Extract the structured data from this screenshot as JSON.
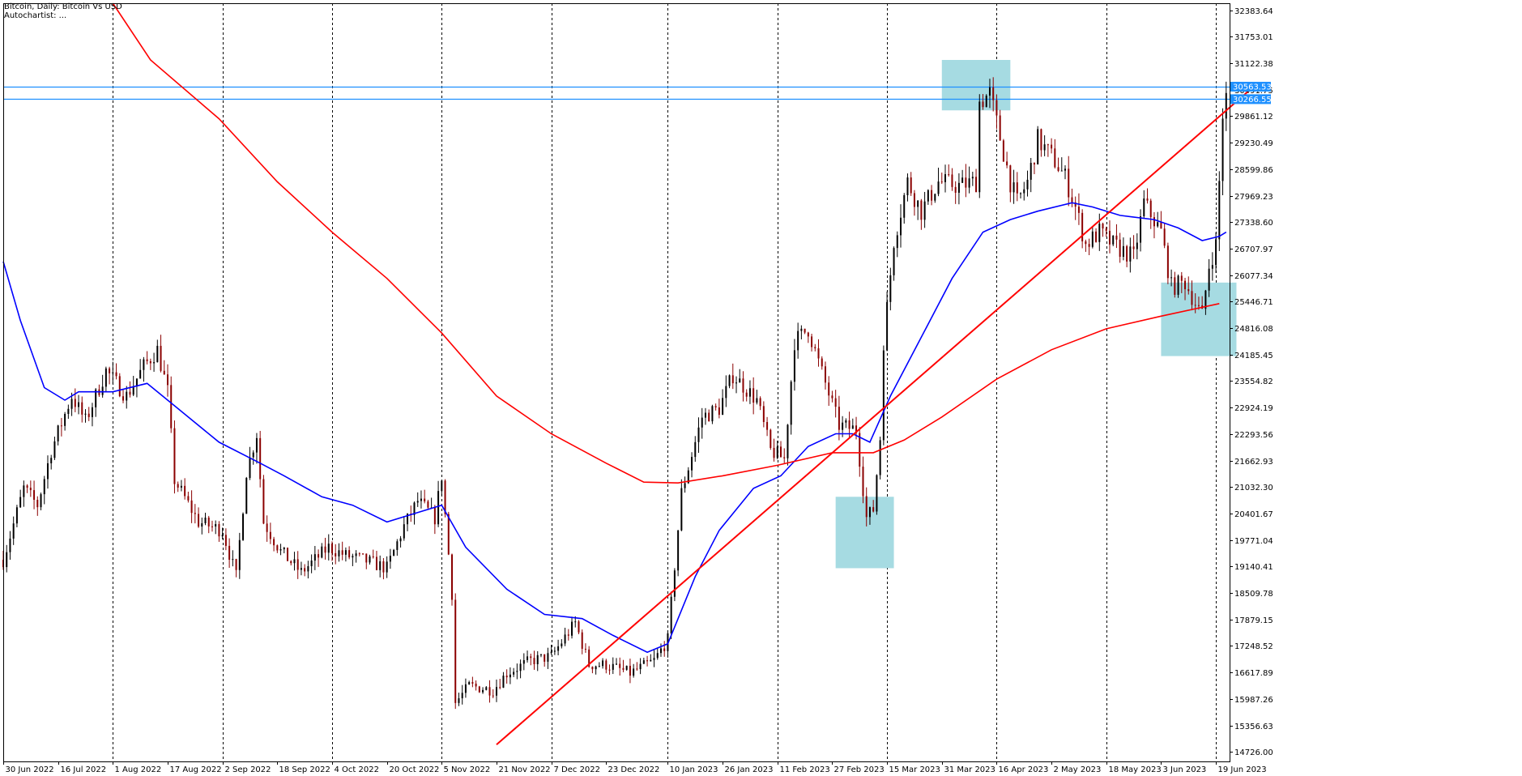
{
  "header": {
    "title": "Bitcoin, Daily:  Bitcoin Vs USD",
    "subtitle": "Autochartist:  ..."
  },
  "colors": {
    "background": "#ffffff",
    "bull": "#000000",
    "bear": "#8b0000",
    "ma_fast": "#0000ff",
    "ma_slow": "#ff0000",
    "trendline": "#ff0000",
    "hline": "#1e90ff",
    "zone": "#a6dbe2"
  },
  "price_labels": [
    {
      "value": 30563.53,
      "text": "30563.53"
    },
    {
      "value": 30266.55,
      "text": "30266.55"
    }
  ],
  "chart_data": {
    "type": "candlestick",
    "x_start": "2022-06-30",
    "x_end": "2023-06-23",
    "ylim": [
      14500,
      32550
    ],
    "y_ticks": [
      "32383.64",
      "31753.01",
      "31122.38",
      "30491.75",
      "29861.12",
      "29230.49",
      "28599.86",
      "27969.23",
      "27338.60",
      "26707.97",
      "26077.34",
      "25446.71",
      "24816.08",
      "24185.45",
      "23554.82",
      "22924.19",
      "22293.56",
      "21662.93",
      "21032.30",
      "20401.67",
      "19771.04",
      "19140.41",
      "18509.78",
      "17879.15",
      "17248.52",
      "16617.89",
      "15987.26",
      "15356.63",
      "14726.00"
    ],
    "x_ticks": [
      {
        "date": "2022-06-30",
        "label": "30 Jun 2022"
      },
      {
        "date": "2022-07-16",
        "label": "16 Jul 2022"
      },
      {
        "date": "2022-08-01",
        "label": "1 Aug 2022"
      },
      {
        "date": "2022-08-17",
        "label": "17 Aug 2022"
      },
      {
        "date": "2022-09-02",
        "label": "2 Sep 2022"
      },
      {
        "date": "2022-09-18",
        "label": "18 Sep 2022"
      },
      {
        "date": "2022-10-04",
        "label": "4 Oct 2022"
      },
      {
        "date": "2022-10-20",
        "label": "20 Oct 2022"
      },
      {
        "date": "2022-11-05",
        "label": "5 Nov 2022"
      },
      {
        "date": "2022-11-21",
        "label": "21 Nov 2022"
      },
      {
        "date": "2022-12-07",
        "label": "7 Dec 2022"
      },
      {
        "date": "2022-12-23",
        "label": "23 Dec 2022"
      },
      {
        "date": "2023-01-10",
        "label": "10 Jan 2023"
      },
      {
        "date": "2023-01-26",
        "label": "26 Jan 2023"
      },
      {
        "date": "2023-02-11",
        "label": "11 Feb 2023"
      },
      {
        "date": "2023-02-27",
        "label": "27 Feb 2023"
      },
      {
        "date": "2023-03-15",
        "label": "15 Mar 2023"
      },
      {
        "date": "2023-03-31",
        "label": "31 Mar 2023"
      },
      {
        "date": "2023-04-16",
        "label": "16 Apr 2023"
      },
      {
        "date": "2023-05-02",
        "label": "2 May 2023"
      },
      {
        "date": "2023-05-18",
        "label": "18 May 2023"
      },
      {
        "date": "2023-06-03",
        "label": "3 Jun 2023"
      },
      {
        "date": "2023-06-19",
        "label": "19 Jun 2023"
      }
    ],
    "vgrid_dates": [
      "2022-08-01",
      "2022-09-02",
      "2022-10-04",
      "2022-11-05",
      "2022-12-07",
      "2023-01-10",
      "2023-02-11",
      "2023-03-15",
      "2023-04-16",
      "2023-05-18",
      "2023-06-19"
    ],
    "close_path": [
      [
        "2022-06-30",
        19300
      ],
      [
        "2022-07-06",
        21000
      ],
      [
        "2022-07-10",
        20600
      ],
      [
        "2022-07-14",
        21900
      ],
      [
        "2022-07-20",
        23200
      ],
      [
        "2022-07-24",
        22600
      ],
      [
        "2022-07-30",
        23800
      ],
      [
        "2022-08-05",
        23200
      ],
      [
        "2022-08-10",
        23900
      ],
      [
        "2022-08-14",
        24300
      ],
      [
        "2022-08-17",
        23300
      ],
      [
        "2022-08-19",
        21200
      ],
      [
        "2022-08-26",
        20200
      ],
      [
        "2022-09-02",
        20000
      ],
      [
        "2022-09-06",
        18900
      ],
      [
        "2022-09-09",
        21400
      ],
      [
        "2022-09-12",
        22300
      ],
      [
        "2022-09-14",
        20200
      ],
      [
        "2022-09-19",
        19500
      ],
      [
        "2022-09-25",
        19000
      ],
      [
        "2022-10-03",
        19600
      ],
      [
        "2022-10-08",
        19400
      ],
      [
        "2022-10-13",
        19300
      ],
      [
        "2022-10-20",
        19100
      ],
      [
        "2022-10-25",
        20100
      ],
      [
        "2022-10-29",
        20700
      ],
      [
        "2022-11-03",
        20300
      ],
      [
        "2022-11-05",
        21300
      ],
      [
        "2022-11-08",
        18500
      ],
      [
        "2022-11-09",
        15900
      ],
      [
        "2022-11-13",
        16300
      ],
      [
        "2022-11-20",
        16200
      ],
      [
        "2022-11-24",
        16600
      ],
      [
        "2022-12-01",
        16900
      ],
      [
        "2022-12-07",
        17000
      ],
      [
        "2022-12-14",
        17800
      ],
      [
        "2022-12-18",
        16800
      ],
      [
        "2022-12-23",
        16800
      ],
      [
        "2022-12-30",
        16600
      ],
      [
        "2023-01-06",
        16900
      ],
      [
        "2023-01-10",
        17400
      ],
      [
        "2023-01-14",
        20900
      ],
      [
        "2023-01-20",
        22700
      ],
      [
        "2023-01-25",
        22900
      ],
      [
        "2023-01-29",
        23700
      ],
      [
        "2023-02-05",
        23100
      ],
      [
        "2023-02-09",
        21900
      ],
      [
        "2023-02-13",
        21700
      ],
      [
        "2023-02-16",
        24500
      ],
      [
        "2023-02-20",
        24800
      ],
      [
        "2023-02-23",
        24000
      ],
      [
        "2023-03-01",
        22500
      ],
      [
        "2023-03-06",
        22400
      ],
      [
        "2023-03-09",
        20300
      ],
      [
        "2023-03-11",
        20500
      ],
      [
        "2023-03-13",
        22200
      ],
      [
        "2023-03-14",
        24500
      ],
      [
        "2023-03-17",
        26900
      ],
      [
        "2023-03-21",
        28300
      ],
      [
        "2023-03-25",
        27600
      ],
      [
        "2023-03-30",
        28300
      ],
      [
        "2023-04-05",
        28200
      ],
      [
        "2023-04-10",
        28300
      ],
      [
        "2023-04-11",
        30200
      ],
      [
        "2023-04-14",
        30400
      ],
      [
        "2023-04-20",
        28300
      ],
      [
        "2023-04-22",
        27800
      ],
      [
        "2023-04-25",
        28300
      ],
      [
        "2023-04-28",
        29300
      ],
      [
        "2023-05-03",
        28800
      ],
      [
        "2023-05-06",
        28400
      ],
      [
        "2023-05-09",
        27700
      ],
      [
        "2023-05-12",
        26800
      ],
      [
        "2023-05-16",
        27100
      ],
      [
        "2023-05-20",
        26800
      ],
      [
        "2023-05-26",
        26500
      ],
      [
        "2023-05-29",
        27800
      ],
      [
        "2023-06-03",
        27100
      ],
      [
        "2023-06-06",
        25800
      ],
      [
        "2023-06-10",
        25900
      ],
      [
        "2023-06-15",
        25100
      ],
      [
        "2023-06-17",
        26300
      ],
      [
        "2023-06-19",
        26800
      ],
      [
        "2023-06-20",
        28300
      ],
      [
        "2023-06-21",
        29900
      ],
      [
        "2023-06-22",
        30300
      ]
    ],
    "ma_fast_path": [
      [
        "2022-06-30",
        26400
      ],
      [
        "2022-07-05",
        25000
      ],
      [
        "2022-07-12",
        23400
      ],
      [
        "2022-07-18",
        23100
      ],
      [
        "2022-07-22",
        23300
      ],
      [
        "2022-08-01",
        23300
      ],
      [
        "2022-08-11",
        23500
      ],
      [
        "2022-08-20",
        22900
      ],
      [
        "2022-09-01",
        22100
      ],
      [
        "2022-09-13",
        21600
      ],
      [
        "2022-09-20",
        21300
      ],
      [
        "2022-10-01",
        20800
      ],
      [
        "2022-10-10",
        20600
      ],
      [
        "2022-10-20",
        20200
      ],
      [
        "2022-10-28",
        20400
      ],
      [
        "2022-11-05",
        20600
      ],
      [
        "2022-11-12",
        19600
      ],
      [
        "2022-11-24",
        18600
      ],
      [
        "2022-12-05",
        18000
      ],
      [
        "2022-12-16",
        17900
      ],
      [
        "2022-12-25",
        17500
      ],
      [
        "2023-01-04",
        17100
      ],
      [
        "2023-01-10",
        17300
      ],
      [
        "2023-01-18",
        18900
      ],
      [
        "2023-01-25",
        20000
      ],
      [
        "2023-02-04",
        21000
      ],
      [
        "2023-02-12",
        21300
      ],
      [
        "2023-02-20",
        22000
      ],
      [
        "2023-02-28",
        22300
      ],
      [
        "2023-03-05",
        22300
      ],
      [
        "2023-03-10",
        22100
      ],
      [
        "2023-03-16",
        23200
      ],
      [
        "2023-03-25",
        24600
      ],
      [
        "2023-04-03",
        26000
      ],
      [
        "2023-04-12",
        27100
      ],
      [
        "2023-04-20",
        27400
      ],
      [
        "2023-04-28",
        27600
      ],
      [
        "2023-05-08",
        27800
      ],
      [
        "2023-05-14",
        27700
      ],
      [
        "2023-05-22",
        27500
      ],
      [
        "2023-06-01",
        27400
      ],
      [
        "2023-06-08",
        27200
      ],
      [
        "2023-06-15",
        26900
      ],
      [
        "2023-06-20",
        27000
      ],
      [
        "2023-06-22",
        27100
      ]
    ],
    "ma_slow_path": [
      [
        "2022-08-01",
        32550
      ],
      [
        "2022-08-12",
        31200
      ],
      [
        "2022-09-01",
        29800
      ],
      [
        "2022-09-18",
        28300
      ],
      [
        "2022-10-04",
        27100
      ],
      [
        "2022-10-20",
        26000
      ],
      [
        "2022-11-05",
        24700
      ],
      [
        "2022-11-21",
        23200
      ],
      [
        "2022-12-07",
        22300
      ],
      [
        "2022-12-23",
        21600
      ],
      [
        "2023-01-03",
        21150
      ],
      [
        "2023-01-13",
        21130
      ],
      [
        "2023-01-26",
        21300
      ],
      [
        "2023-02-11",
        21550
      ],
      [
        "2023-02-27",
        21850
      ],
      [
        "2023-03-11",
        21850
      ],
      [
        "2023-03-20",
        22150
      ],
      [
        "2023-03-31",
        22700
      ],
      [
        "2023-04-16",
        23600
      ],
      [
        "2023-05-02",
        24300
      ],
      [
        "2023-05-18",
        24800
      ],
      [
        "2023-06-03",
        25100
      ],
      [
        "2023-06-20",
        25400
      ]
    ],
    "hlines": [
      30563.53,
      30266.55
    ],
    "trendline": [
      [
        "2022-11-21",
        14900
      ],
      [
        "2023-06-30",
        30563
      ]
    ],
    "zones": [
      {
        "date_start": "2023-03-31",
        "date_end": "2023-04-20",
        "y_low": 30000,
        "y_high": 31200
      },
      {
        "date_start": "2023-02-28",
        "date_end": "2023-03-17",
        "y_low": 19100,
        "y_high": 20800
      },
      {
        "date_start": "2023-06-03",
        "date_end": "2023-06-25",
        "y_low": 24150,
        "y_high": 25900
      }
    ]
  }
}
